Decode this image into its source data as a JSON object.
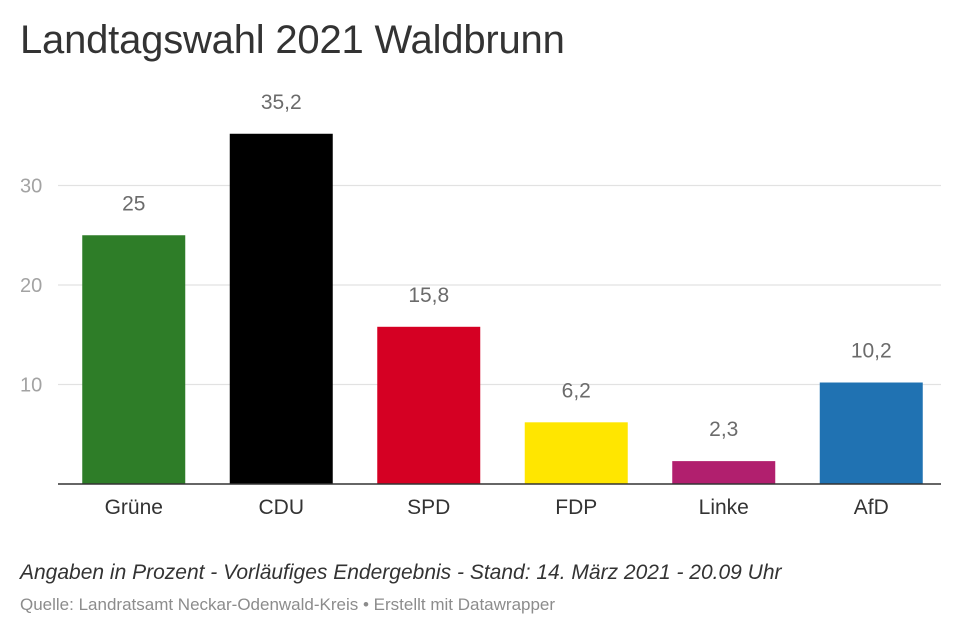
{
  "chart_data": {
    "type": "bar",
    "title": "Landtagswahl 2021 Waldbrunn",
    "categories": [
      "Grüne",
      "CDU",
      "SPD",
      "FDP",
      "Linke",
      "AfD"
    ],
    "values": [
      25,
      35.2,
      15.8,
      6.2,
      2.3,
      10.2
    ],
    "value_labels": [
      "25",
      "35,2",
      "15,8",
      "6,2",
      "2,3",
      "10,2"
    ],
    "colors": [
      "#2e7d28",
      "#000000",
      "#d50023",
      "#ffe600",
      "#b11f6e",
      "#2072b2"
    ],
    "yticks": [
      10,
      20,
      30
    ],
    "ylim": [
      0,
      38
    ],
    "grid": true,
    "xlabel": "",
    "ylabel": ""
  },
  "notes": "Angaben in Prozent - Vorläufiges Endergebnis - Stand: 14. März 2021 - 20.09 Uhr",
  "source": "Quelle: Landratsamt Neckar-Odenwald-Kreis • Erstellt mit Datawrapper"
}
